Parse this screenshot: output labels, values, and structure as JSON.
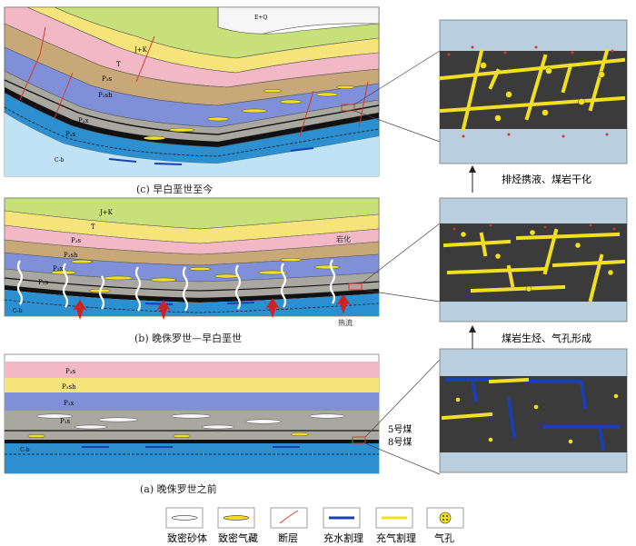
{
  "panel_c": {
    "caption": "(c) 早白垩世至今",
    "labels": {
      "eq": "E+Q",
      "jk": "J+K",
      "t": "T",
      "p3s": "P₃s",
      "p2sh": "P₂sh",
      "p2x": "P₂x",
      "p1s": "P₁s",
      "cb": "C-b"
    },
    "process": "排烃携液、煤岩干化"
  },
  "panel_b": {
    "caption": "(b) 晚侏罗世—早白垩世",
    "labels": {
      "jk": "J+K",
      "t": "T",
      "p3s": "P₃s",
      "p2sh": "P₂sh",
      "p2x": "P₂x",
      "p1s": "P₁s",
      "cb": "C-b",
      "diagenesis": "岩化",
      "heat": "热流"
    },
    "process": "煤岩生烃、气孔形成"
  },
  "panel_a": {
    "caption": "(a) 晚侏罗世之前",
    "labels": {
      "p3s": "P₃s",
      "p2sh": "P₂sh",
      "p2x": "P₂x",
      "p1s": "P₁s",
      "cb": "C-b"
    },
    "coal5": "5号煤",
    "coal8": "8号煤"
  },
  "legend": [
    {
      "label": "致密砂体"
    },
    {
      "label": "致密气藏"
    },
    {
      "label": "断层"
    },
    {
      "label": "充水割理"
    },
    {
      "label": "充气割理"
    },
    {
      "label": "气孔"
    }
  ],
  "colors": {
    "eq": "#f6f6f6",
    "jk": "#c8e07a",
    "t": "#f5e47a",
    "p3s": "#f2b8c6",
    "p2sh": "#c8a878",
    "p2x": "#7f8fd8",
    "p1s": "#a8a8a0",
    "coal": "#111111",
    "cb": "#2b8fd0",
    "basement": "#bfe3f4",
    "gas": "#f0e020",
    "water": "#1a3fb0",
    "fault": "#d43a2a",
    "zoom_bg": "#3b3b3b",
    "zoom_frame": "#b9cfe0"
  }
}
